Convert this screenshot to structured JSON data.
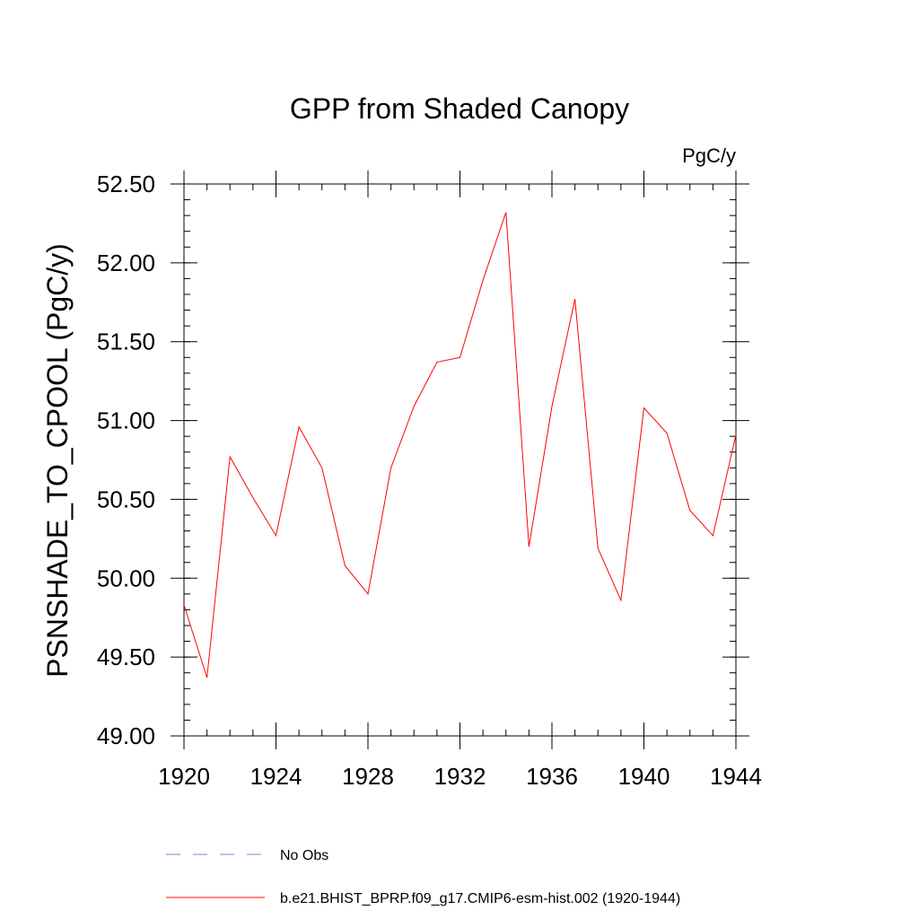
{
  "chart_data": {
    "type": "line",
    "title": "GPP from Shaded Canopy",
    "units_label": "PgC/y",
    "ylabel": "PSNSHADE_TO_CPOOL  (PgC/y)",
    "xlabel": "",
    "xlim": [
      1920,
      1944
    ],
    "ylim": [
      49.0,
      52.5
    ],
    "x_ticks": [
      1920,
      1924,
      1928,
      1932,
      1936,
      1940,
      1944
    ],
    "x_tick_labels": [
      "1920",
      "1924",
      "1928",
      "1932",
      "1936",
      "1940",
      "1944"
    ],
    "y_ticks": [
      49.0,
      49.5,
      50.0,
      50.5,
      51.0,
      51.5,
      52.0,
      52.5
    ],
    "y_tick_labels": [
      "49.00",
      "49.50",
      "50.00",
      "50.50",
      "51.00",
      "51.50",
      "52.00",
      "52.50"
    ],
    "x_minor_step": 1,
    "y_minor_step": 0.1,
    "grid": false,
    "series": [
      {
        "name": "b.e21.BHIST_BPRP.f09_g17.CMIP6-esm-hist.002 (1920-1944)",
        "color": "#ff0000",
        "style": "solid",
        "x": [
          1920,
          1921,
          1922,
          1923,
          1924,
          1925,
          1926,
          1927,
          1928,
          1929,
          1930,
          1931,
          1932,
          1933,
          1934,
          1935,
          1936,
          1937,
          1938,
          1939,
          1940,
          1941,
          1942,
          1943,
          1944
        ],
        "values": [
          49.83,
          49.37,
          50.77,
          50.51,
          50.27,
          50.96,
          50.7,
          50.08,
          49.9,
          50.7,
          51.09,
          51.37,
          51.4,
          51.89,
          52.32,
          50.2,
          51.09,
          51.77,
          50.19,
          49.86,
          51.08,
          50.92,
          50.43,
          50.27,
          50.91
        ]
      }
    ],
    "legend": {
      "placement": "bottom",
      "entries": [
        {
          "label": "No Obs",
          "color": "#7f7fd9",
          "style": "dashed"
        },
        {
          "label": "b.e21.BHIST_BPRP.f09_g17.CMIP6-esm-hist.002 (1920-1944)",
          "color": "#ff0000",
          "style": "solid"
        }
      ]
    }
  }
}
